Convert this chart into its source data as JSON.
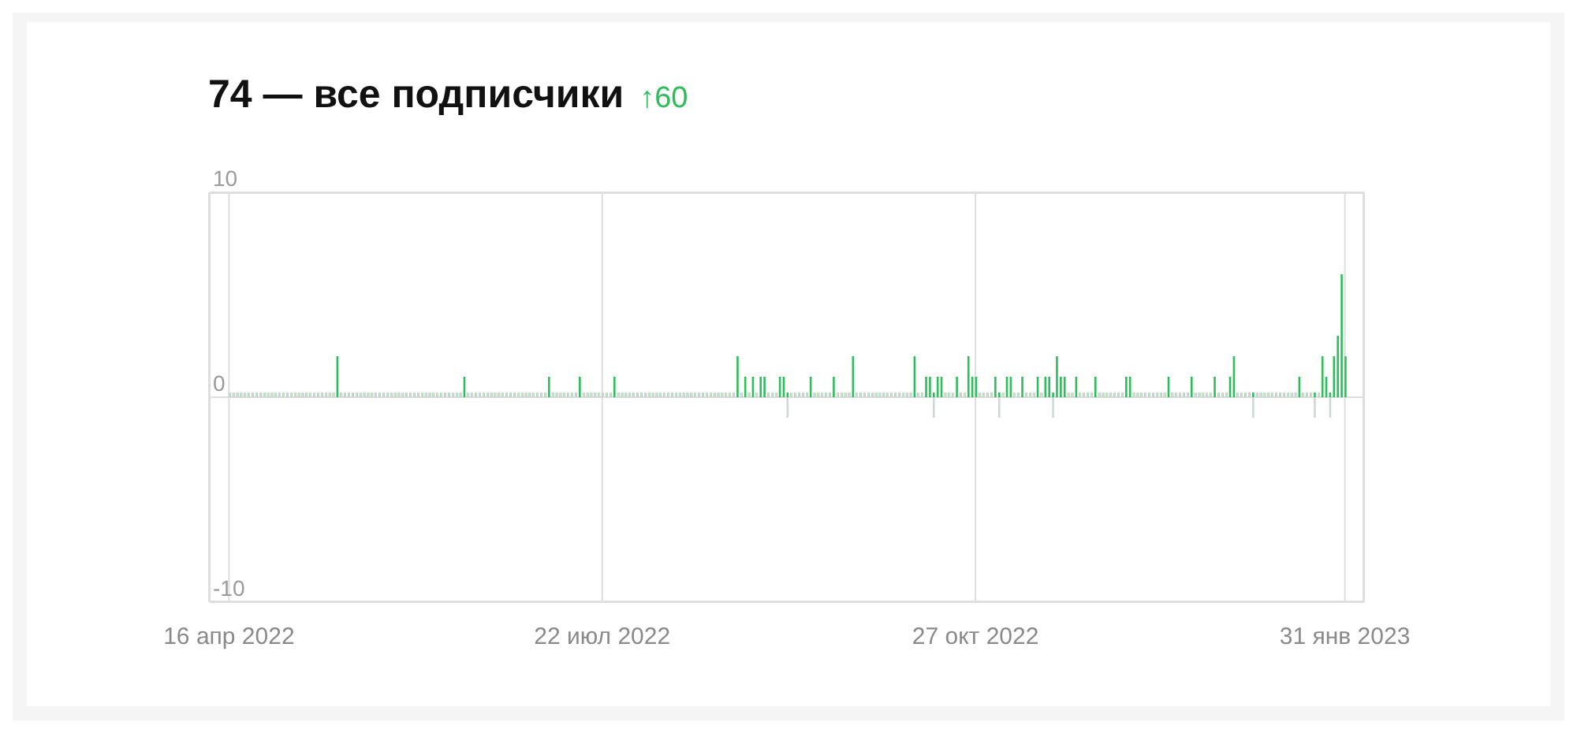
{
  "chart_data": {
    "type": "bar",
    "title": "74 — все подписчики",
    "subtitle": "↑60",
    "stacked": true,
    "x": [
      "2022-04-16",
      "2022-04-17",
      "2022-04-18",
      "2022-04-19",
      "2022-04-20",
      "2022-04-21",
      "2022-04-22",
      "2022-04-23",
      "2022-04-24",
      "2022-04-25",
      "2022-04-26",
      "2022-04-27",
      "2022-04-28",
      "2022-04-29",
      "2022-04-30",
      "2022-05-01",
      "2022-05-02",
      "2022-05-03",
      "2022-05-04",
      "2022-05-05",
      "2022-05-06",
      "2022-05-07",
      "2022-05-08",
      "2022-05-09",
      "2022-05-10",
      "2022-05-11",
      "2022-05-12",
      "2022-05-13",
      "2022-05-14",
      "2022-05-15",
      "2022-05-16",
      "2022-05-17",
      "2022-05-18",
      "2022-05-19",
      "2022-05-20",
      "2022-05-21",
      "2022-05-22",
      "2022-05-23",
      "2022-05-24",
      "2022-05-25",
      "2022-05-26",
      "2022-05-27",
      "2022-05-28",
      "2022-05-29",
      "2022-05-30",
      "2022-05-31",
      "2022-06-01",
      "2022-06-02",
      "2022-06-03",
      "2022-06-04",
      "2022-06-05",
      "2022-06-06",
      "2022-06-07",
      "2022-06-08",
      "2022-06-09",
      "2022-06-10",
      "2022-06-11",
      "2022-06-12",
      "2022-06-13",
      "2022-06-14",
      "2022-06-15",
      "2022-06-16",
      "2022-06-17",
      "2022-06-18",
      "2022-06-19",
      "2022-06-20",
      "2022-06-21",
      "2022-06-22",
      "2022-06-23",
      "2022-06-24",
      "2022-06-25",
      "2022-06-26",
      "2022-06-27",
      "2022-06-28",
      "2022-06-29",
      "2022-06-30",
      "2022-07-01",
      "2022-07-02",
      "2022-07-03",
      "2022-07-04",
      "2022-07-05",
      "2022-07-06",
      "2022-07-07",
      "2022-07-08",
      "2022-07-09",
      "2022-07-10",
      "2022-07-11",
      "2022-07-12",
      "2022-07-13",
      "2022-07-14",
      "2022-07-15",
      "2022-07-16",
      "2022-07-17",
      "2022-07-18",
      "2022-07-19",
      "2022-07-20",
      "2022-07-21",
      "2022-07-22",
      "2022-07-23",
      "2022-07-24",
      "2022-07-25",
      "2022-07-26",
      "2022-07-27",
      "2022-07-28",
      "2022-07-29",
      "2022-07-30",
      "2022-07-31",
      "2022-08-01",
      "2022-08-02",
      "2022-08-03",
      "2022-08-04",
      "2022-08-05",
      "2022-08-06",
      "2022-08-07",
      "2022-08-08",
      "2022-08-09",
      "2022-08-10",
      "2022-08-11",
      "2022-08-12",
      "2022-08-13",
      "2022-08-14",
      "2022-08-15",
      "2022-08-16",
      "2022-08-17",
      "2022-08-18",
      "2022-08-19",
      "2022-08-20",
      "2022-08-21",
      "2022-08-22",
      "2022-08-23",
      "2022-08-24",
      "2022-08-25",
      "2022-08-26",
      "2022-08-27",
      "2022-08-28",
      "2022-08-29",
      "2022-08-30",
      "2022-08-31",
      "2022-09-01",
      "2022-09-02",
      "2022-09-03",
      "2022-09-04",
      "2022-09-05",
      "2022-09-06",
      "2022-09-07",
      "2022-09-08",
      "2022-09-09",
      "2022-09-10",
      "2022-09-11",
      "2022-09-12",
      "2022-09-13",
      "2022-09-14",
      "2022-09-15",
      "2022-09-16",
      "2022-09-17",
      "2022-09-18",
      "2022-09-19",
      "2022-09-20",
      "2022-09-21",
      "2022-09-22",
      "2022-09-23",
      "2022-09-24",
      "2022-09-25",
      "2022-09-26",
      "2022-09-27",
      "2022-09-28",
      "2022-09-29",
      "2022-09-30",
      "2022-10-01",
      "2022-10-02",
      "2022-10-03",
      "2022-10-04",
      "2022-10-05",
      "2022-10-06",
      "2022-10-07",
      "2022-10-08",
      "2022-10-09",
      "2022-10-10",
      "2022-10-11",
      "2022-10-12",
      "2022-10-13",
      "2022-10-14",
      "2022-10-15",
      "2022-10-16",
      "2022-10-17",
      "2022-10-18",
      "2022-10-19",
      "2022-10-20",
      "2022-10-21",
      "2022-10-22",
      "2022-10-23",
      "2022-10-24",
      "2022-10-25",
      "2022-10-26",
      "2022-10-27",
      "2022-10-28",
      "2022-10-29",
      "2022-10-30",
      "2022-10-31",
      "2022-11-01",
      "2022-11-02",
      "2022-11-03",
      "2022-11-04",
      "2022-11-05",
      "2022-11-06",
      "2022-11-07",
      "2022-11-08",
      "2022-11-09",
      "2022-11-10",
      "2022-11-11",
      "2022-11-12",
      "2022-11-13",
      "2022-11-14",
      "2022-11-15",
      "2022-11-16",
      "2022-11-17",
      "2022-11-18",
      "2022-11-19",
      "2022-11-20",
      "2022-11-21",
      "2022-11-22",
      "2022-11-23",
      "2022-11-24",
      "2022-11-25",
      "2022-11-26",
      "2022-11-27",
      "2022-11-28",
      "2022-11-29",
      "2022-11-30",
      "2022-12-01",
      "2022-12-02",
      "2022-12-03",
      "2022-12-04",
      "2022-12-05",
      "2022-12-06",
      "2022-12-07",
      "2022-12-08",
      "2022-12-09",
      "2022-12-10",
      "2022-12-11",
      "2022-12-12",
      "2022-12-13",
      "2022-12-14",
      "2022-12-15",
      "2022-12-16",
      "2022-12-17",
      "2022-12-18",
      "2022-12-19",
      "2022-12-20",
      "2022-12-21",
      "2022-12-22",
      "2022-12-23",
      "2022-12-24",
      "2022-12-25",
      "2022-12-26",
      "2022-12-27",
      "2022-12-28",
      "2022-12-29",
      "2022-12-30",
      "2022-12-31",
      "2023-01-01",
      "2023-01-02",
      "2023-01-03",
      "2023-01-04",
      "2023-01-05",
      "2023-01-06",
      "2023-01-07",
      "2023-01-08",
      "2023-01-09",
      "2023-01-10",
      "2023-01-11",
      "2023-01-12",
      "2023-01-13",
      "2023-01-14",
      "2023-01-15",
      "2023-01-16",
      "2023-01-17",
      "2023-01-18",
      "2023-01-19",
      "2023-01-20",
      "2023-01-21",
      "2023-01-22",
      "2023-01-23",
      "2023-01-24",
      "2023-01-25",
      "2023-01-26",
      "2023-01-27",
      "2023-01-28",
      "2023-01-29",
      "2023-01-30",
      "2023-01-31"
    ],
    "series": [
      {
        "color": "#2dbd5a",
        "values": [
          0,
          0,
          0,
          0,
          0,
          0,
          0,
          0,
          0,
          0,
          0,
          0,
          0,
          0,
          0,
          0,
          0,
          0,
          0,
          0,
          0,
          0,
          0,
          0,
          0,
          0,
          0,
          0,
          2,
          0,
          0,
          0,
          0,
          0,
          0,
          0,
          0,
          0,
          0,
          0,
          0,
          0,
          0,
          0,
          0,
          0,
          0,
          0,
          0,
          0,
          0,
          0,
          0,
          0,
          0,
          0,
          0,
          0,
          0,
          0,
          0,
          1,
          0,
          0,
          0,
          0,
          0,
          0,
          0,
          0,
          0,
          0,
          0,
          0,
          0,
          0,
          0,
          0,
          0,
          0,
          0,
          0,
          0,
          1,
          0,
          0,
          0,
          0,
          0,
          0,
          0,
          1,
          0,
          0,
          0,
          0,
          0,
          0,
          0,
          0,
          1,
          0,
          0,
          0,
          0,
          0,
          0,
          0,
          0,
          0,
          0,
          0,
          0,
          0,
          0,
          0,
          0,
          0,
          0,
          0,
          0,
          0,
          0,
          0,
          0,
          0,
          0,
          0,
          0,
          0,
          0,
          0,
          2,
          0,
          1,
          0,
          1,
          0,
          1,
          1,
          0,
          0,
          0,
          1,
          1,
          0,
          0,
          0,
          0,
          0,
          0,
          1,
          0,
          0,
          0,
          0,
          0,
          1,
          0,
          0,
          0,
          0,
          2,
          0,
          0,
          0,
          0,
          0,
          0,
          0,
          0,
          0,
          0,
          0,
          0,
          0,
          0,
          0,
          2,
          0,
          0,
          1,
          1,
          0,
          1,
          1,
          0,
          0,
          0,
          1,
          0,
          0,
          2,
          1,
          1,
          0,
          0,
          0,
          0,
          1,
          0,
          0,
          1,
          1,
          0,
          0,
          1,
          0,
          0,
          0,
          1,
          0,
          1,
          1,
          0,
          2,
          1,
          1,
          0,
          0,
          1,
          0,
          0,
          0,
          0,
          1,
          0,
          0,
          0,
          0,
          0,
          0,
          0,
          1,
          1,
          0,
          0,
          0,
          0,
          0,
          0,
          0,
          0,
          0,
          1,
          0,
          0,
          0,
          0,
          0,
          1,
          0,
          0,
          0,
          0,
          0,
          1,
          0,
          0,
          0,
          1,
          2,
          0,
          0,
          0,
          0,
          0,
          0,
          0,
          0,
          0,
          0,
          0,
          0,
          0,
          0,
          0,
          0,
          1,
          0,
          0,
          0,
          0,
          0,
          2,
          1,
          0,
          2,
          3,
          6,
          2
        ]
      },
      {
        "color": "#cfd9d2",
        "x": [
          "2022-09-08",
          "2022-10-16",
          "2022-11-02",
          "2022-11-16",
          "2023-01-07",
          "2023-01-23",
          "2023-01-27"
        ],
        "values": [
          -1,
          -1,
          -1,
          -1,
          -1,
          -1,
          -1
        ]
      }
    ],
    "xlim": [
      "2022-04-11",
      "2023-02-05"
    ],
    "xticks": [
      {
        "value": "2022-04-16",
        "label": "16 апр 2022"
      },
      {
        "value": "2022-07-22",
        "label": "22 июл 2022"
      },
      {
        "value": "2022-10-27",
        "label": "27 окт 2022"
      },
      {
        "value": "2023-01-31",
        "label": "31 янв 2023"
      }
    ],
    "ylim": [
      -10,
      10
    ],
    "yticks": [
      -10,
      0,
      10
    ],
    "grid": true
  }
}
